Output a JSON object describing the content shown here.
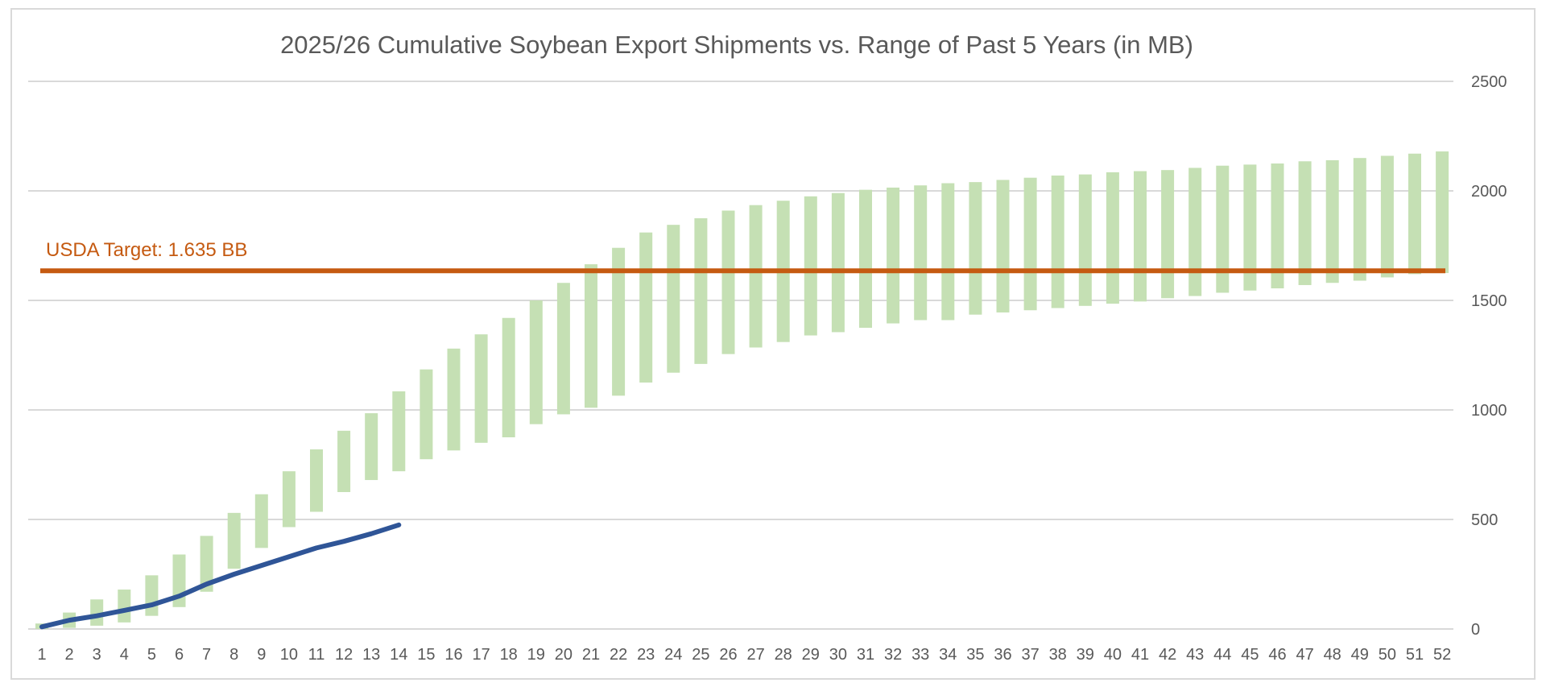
{
  "chart_data": {
    "type": "bar",
    "title": "2025/26 Cumulative Soybean Export Shipments vs. Range of Past 5 Years (in MB)",
    "xlabel": "",
    "ylabel": "",
    "ylim": [
      0,
      2500
    ],
    "y_ticks": [
      0,
      500,
      1000,
      1500,
      2000,
      2500
    ],
    "y_axis_position": "right",
    "grid": true,
    "legend": "none",
    "categories": [
      "1",
      "2",
      "3",
      "4",
      "5",
      "6",
      "7",
      "8",
      "9",
      "10",
      "11",
      "12",
      "13",
      "14",
      "15",
      "16",
      "17",
      "18",
      "19",
      "20",
      "21",
      "22",
      "23",
      "24",
      "25",
      "26",
      "27",
      "28",
      "29",
      "30",
      "31",
      "32",
      "33",
      "34",
      "35",
      "36",
      "37",
      "38",
      "39",
      "40",
      "41",
      "42",
      "43",
      "44",
      "45",
      "46",
      "47",
      "48",
      "49",
      "50",
      "51",
      "52"
    ],
    "range_bars": {
      "low": [
        0,
        5,
        15,
        30,
        60,
        100,
        170,
        275,
        370,
        465,
        535,
        625,
        680,
        720,
        775,
        815,
        850,
        875,
        935,
        980,
        1010,
        1065,
        1125,
        1170,
        1210,
        1255,
        1285,
        1310,
        1340,
        1355,
        1375,
        1395,
        1410,
        1410,
        1435,
        1445,
        1455,
        1465,
        1475,
        1485,
        1495,
        1510,
        1520,
        1535,
        1545,
        1555,
        1570,
        1580,
        1590,
        1605,
        1620,
        1625
      ],
      "high": [
        25,
        75,
        135,
        180,
        245,
        340,
        425,
        530,
        615,
        720,
        820,
        905,
        985,
        1085,
        1185,
        1280,
        1345,
        1420,
        1500,
        1580,
        1665,
        1740,
        1810,
        1845,
        1875,
        1910,
        1935,
        1955,
        1975,
        1990,
        2005,
        2015,
        2025,
        2035,
        2040,
        2050,
        2060,
        2070,
        2075,
        2085,
        2090,
        2095,
        2105,
        2115,
        2120,
        2125,
        2135,
        2140,
        2150,
        2160,
        2170,
        2180
      ],
      "color": "#c5e0b4"
    },
    "series": [
      {
        "x": [
          1,
          2,
          3,
          4,
          5,
          6,
          7,
          8,
          9,
          10,
          11,
          12,
          13,
          14
        ],
        "values": [
          10,
          40,
          60,
          85,
          110,
          150,
          205,
          250,
          290,
          330,
          370,
          400,
          435,
          475
        ],
        "color": "#2f5597"
      }
    ],
    "target": {
      "value": 1635,
      "label": "USDA Target: 1.635 BB",
      "color": "#c55a11"
    },
    "gridline_color": "#d9d9d9",
    "text_color": "#595959"
  }
}
